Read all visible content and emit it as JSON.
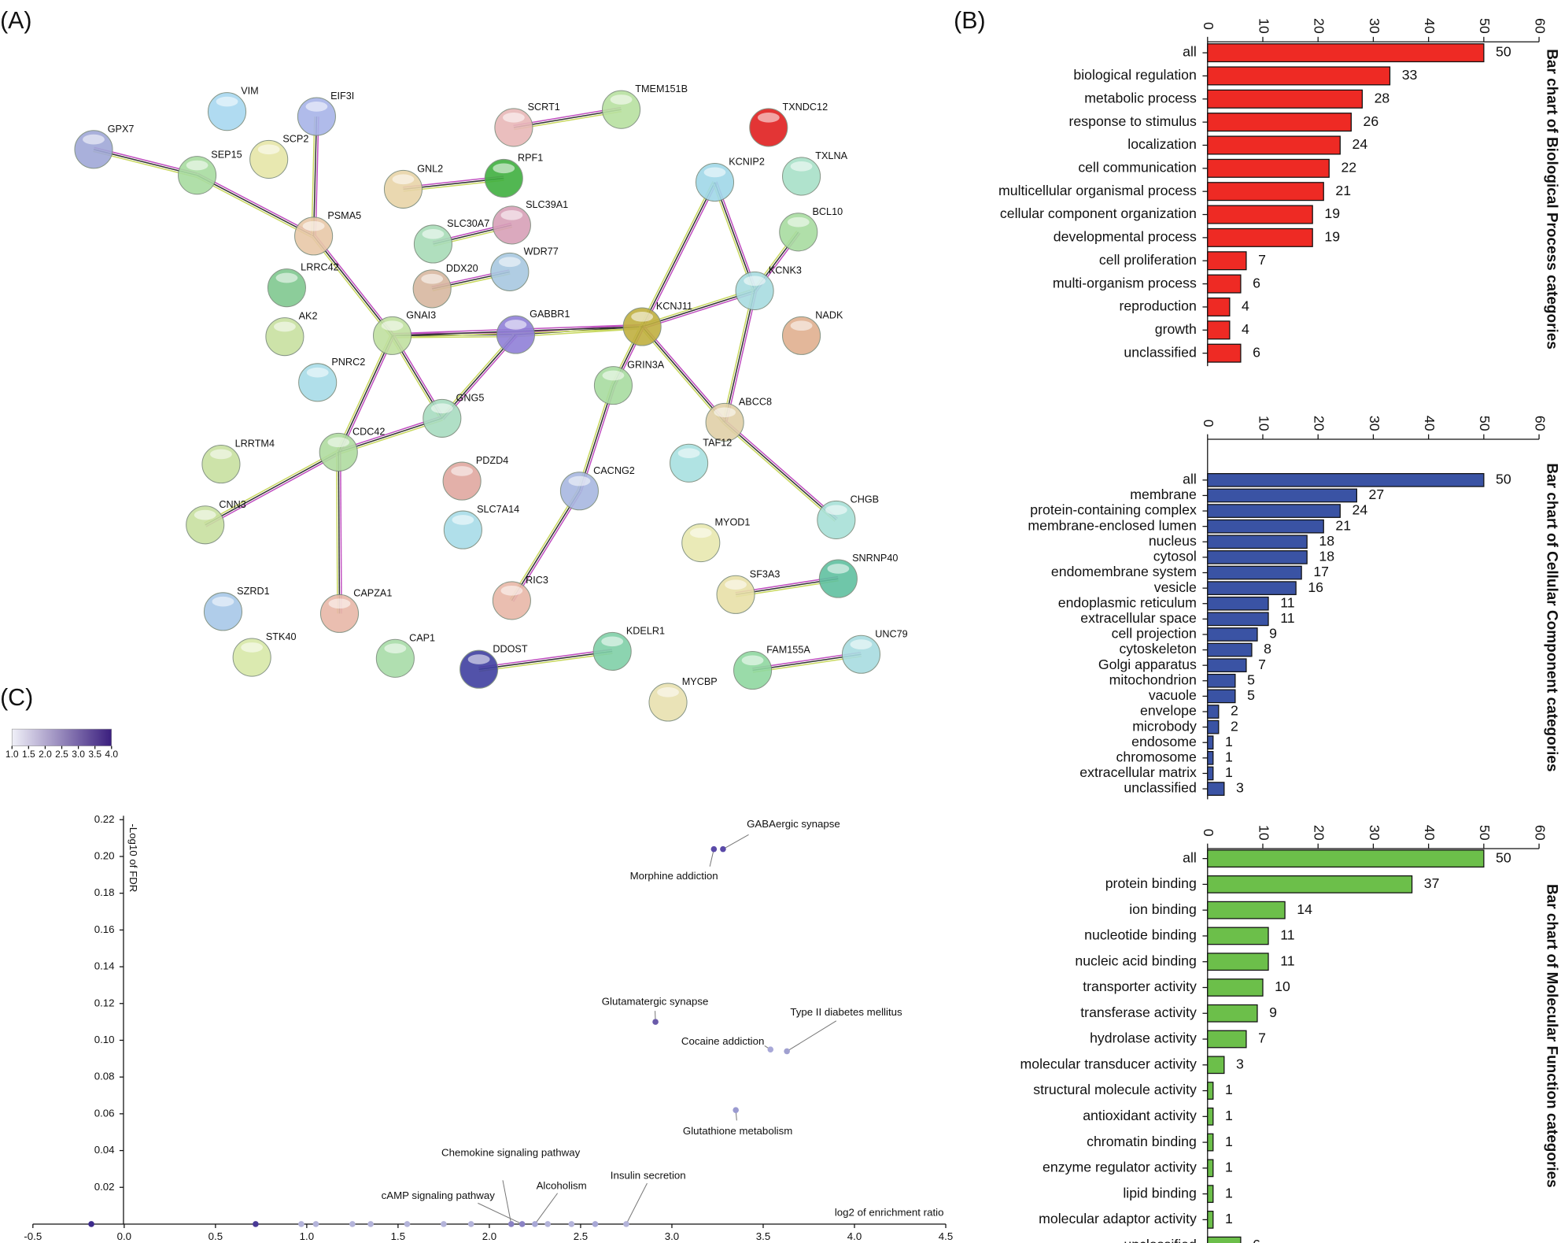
{
  "panels": {
    "a": "(A)",
    "b": "(B)",
    "c": "(C)"
  },
  "network": {
    "nodes": [
      "VIM",
      "EIF3I",
      "GPX7",
      "SCP2",
      "SEP15",
      "SCRT1",
      "TMEM151B",
      "TXNDC12",
      "GNL2",
      "RPF1",
      "KCNIP2",
      "TXLNA",
      "SLC30A7",
      "SLC39A1",
      "BCL10",
      "PSMA5",
      "LRRC42",
      "WDR77",
      "DDX20",
      "KCNK3",
      "AK2",
      "GNAI3",
      "GABBR1",
      "KCNJ11",
      "NADK",
      "PNRC2",
      "GRIN3A",
      "GNG5",
      "ABCC8",
      "LRRTM4",
      "CDC42",
      "TAF12",
      "PDZD4",
      "CACNG2",
      "CHGB",
      "CNN3",
      "SLC7A14",
      "MYOD1",
      "SZRD1",
      "SNRNP40",
      "SF3A3",
      "CAPZA1",
      "RIC3",
      "STK40",
      "CAP1",
      "KDELR1",
      "DDOST",
      "FAM155A",
      "UNC79",
      "MYCBP"
    ]
  },
  "chart_data": [
    {
      "type": "hbar",
      "title": "Bar chart of Biological Process categories",
      "color": "#ee2a24",
      "categories": [
        "all",
        "biological regulation",
        "metabolic process",
        "response to stimulus",
        "localization",
        "cell communication",
        "multicellular organismal process",
        "cellular component organization",
        "developmental process",
        "cell proliferation",
        "multi-organism process",
        "reproduction",
        "growth",
        "unclassified"
      ],
      "values": [
        50,
        33,
        28,
        26,
        24,
        22,
        21,
        19,
        19,
        7,
        6,
        4,
        4,
        6
      ],
      "xlim": [
        0,
        60
      ],
      "xticks": [
        0,
        10,
        20,
        30,
        40,
        50,
        60
      ]
    },
    {
      "type": "hbar",
      "title": "Bar chart of Cellular Component categories",
      "color": "#3a53a4",
      "categories": [
        "all",
        "membrane",
        "protein-containing complex",
        "membrane-enclosed lumen",
        "nucleus",
        "cytosol",
        "endomembrane system",
        "vesicle",
        "endoplasmic reticulum",
        "extracellular space",
        "cell projection",
        "cytoskeleton",
        "Golgi apparatus",
        "mitochondrion",
        "vacuole",
        "envelope",
        "microbody",
        "endosome",
        "chromosome",
        "extracellular matrix",
        "unclassified"
      ],
      "values": [
        50,
        27,
        24,
        21,
        18,
        18,
        17,
        16,
        11,
        11,
        9,
        8,
        7,
        5,
        5,
        2,
        2,
        1,
        1,
        1,
        3
      ],
      "xlim": [
        0,
        60
      ],
      "xticks": [
        0,
        10,
        20,
        30,
        40,
        50,
        60
      ]
    },
    {
      "type": "hbar",
      "title": "Bar chart of Molecular Function categories",
      "color": "#6cbf4a",
      "categories": [
        "all",
        "protein binding",
        "ion binding",
        "nucleotide binding",
        "nucleic acid binding",
        "transporter activity",
        "transferase activity",
        "hydrolase activity",
        "molecular transducer activity",
        "structural molecule activity",
        "antioxidant activity",
        "chromatin binding",
        "enzyme regulator activity",
        "lipid binding",
        "molecular adaptor activity",
        "unclassified"
      ],
      "values": [
        50,
        37,
        14,
        11,
        11,
        10,
        9,
        7,
        3,
        1,
        1,
        1,
        1,
        1,
        1,
        6
      ],
      "xlim": [
        0,
        60
      ],
      "xticks": [
        0,
        10,
        20,
        30,
        40,
        50,
        60
      ]
    },
    {
      "type": "scatter",
      "x_label": "log2 of enrichment ratio",
      "y_label": "-Log10 of FDR",
      "x": [
        -0.18,
        0.72,
        0.97,
        1.05,
        1.25,
        1.35,
        1.55,
        1.75,
        1.9,
        2.12,
        2.18,
        2.25,
        2.32,
        2.45,
        2.58,
        2.75,
        2.91,
        3.23,
        3.28,
        3.35,
        3.54,
        3.63
      ],
      "values": [
        0,
        0,
        0,
        0,
        0,
        0,
        0,
        0,
        0,
        0,
        0,
        0,
        0,
        0,
        0,
        0,
        0.11,
        0.204,
        0.204,
        0.062,
        0.095,
        0.094
      ],
      "colors": [
        "#3d2b8c",
        "#4a3a96",
        "#b4b4da",
        "#b4b4da",
        "#b4b4da",
        "#b4b4da",
        "#b4b4da",
        "#b4b4da",
        "#b4b4da",
        "#8a82c4",
        "#8a82c4",
        "#a8a8d6",
        "#b4b4da",
        "#b4b4da",
        "#a8a8d6",
        "#b4b4da",
        "#6a5aaa",
        "#5a4aa8",
        "#5a4aa8",
        "#9a9ad0",
        "#a8a8d8",
        "#a0a0d0"
      ],
      "point_labels": [
        null,
        null,
        null,
        null,
        null,
        null,
        null,
        null,
        null,
        "Chemokine signaling pathway",
        "cAMP signaling pathway",
        "Alcoholism",
        null,
        null,
        null,
        "Insulin secretion",
        "Glutamatergic synapse",
        "Morphine addiction",
        "GABAergic synapse",
        "Glutathione metabolism",
        "Cocaine addiction",
        "Type II diabetes mellitus"
      ],
      "xlim": [
        -0.5,
        4.5
      ],
      "xticks": [
        -0.5,
        {
          "value": 0,
          "label": "0.0"
        },
        0.5,
        {
          "value": 1,
          "label": "1.0"
        },
        1.5,
        {
          "value": 2,
          "label": "2.0"
        },
        2.5,
        {
          "value": 3,
          "label": "3.0"
        },
        3.5,
        {
          "value": 4,
          "label": "4.0"
        },
        4.5
      ],
      "ylim": [
        0,
        0.22
      ],
      "yticks": [
        0.02,
        0.04,
        0.06,
        0.08,
        {
          "value": 0.1,
          "label": "0.10"
        },
        0.12,
        0.14,
        0.16,
        0.18,
        {
          "value": 0.2,
          "label": "0.20"
        },
        0.22
      ],
      "colorbar": {
        "colors": [
          "#f0f0f8",
          "#3a1e7e"
        ],
        "ticks": [
          {
            "value": 1,
            "label": "1.0"
          },
          1.5,
          {
            "value": 2,
            "label": "2.0"
          },
          2.5,
          {
            "value": 3,
            "label": "3.0"
          },
          3.5,
          {
            "value": 4,
            "label": "4.0"
          }
        ]
      }
    }
  ]
}
